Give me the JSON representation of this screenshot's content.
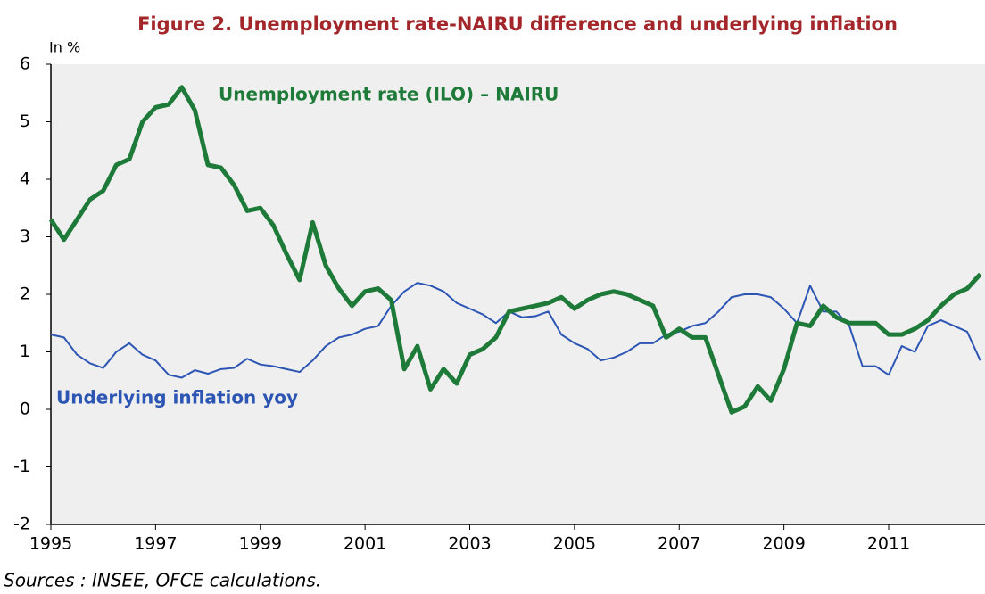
{
  "chart_data": {
    "type": "line",
    "title": "Figure 2. Unemployment rate-NAIRU difference and underlying inflation",
    "y_axis_label": "In %",
    "source": "Sources : INSEE, OFCE calculations.",
    "x": [
      1995,
      1995.25,
      1995.5,
      1995.75,
      1996,
      1996.25,
      1996.5,
      1996.75,
      1997,
      1997.25,
      1997.5,
      1997.75,
      1998,
      1998.25,
      1998.5,
      1998.75,
      1999,
      1999.25,
      1999.5,
      1999.75,
      2000,
      2000.25,
      2000.5,
      2000.75,
      2001,
      2001.25,
      2001.5,
      2001.75,
      2002,
      2002.25,
      2002.5,
      2002.75,
      2003,
      2003.25,
      2003.5,
      2003.75,
      2004,
      2004.25,
      2004.5,
      2004.75,
      2005,
      2005.25,
      2005.5,
      2005.75,
      2006,
      2006.25,
      2006.5,
      2006.75,
      2007,
      2007.25,
      2007.5,
      2007.75,
      2008,
      2008.25,
      2008.5,
      2008.75,
      2009,
      2009.25,
      2009.5,
      2009.75,
      2010,
      2010.25,
      2010.5,
      2010.75,
      2011,
      2011.25,
      2011.5,
      2011.75,
      2012,
      2012.25,
      2012.5,
      2012.75
    ],
    "series": [
      {
        "name": "Unemployment rate (ILO) – NAIRU",
        "color": "#1e7a38",
        "width": 5,
        "values": [
          3.3,
          2.95,
          3.3,
          3.65,
          3.8,
          4.25,
          4.35,
          5.0,
          5.25,
          5.3,
          5.6,
          5.2,
          4.25,
          4.2,
          3.9,
          3.45,
          3.5,
          3.2,
          2.7,
          2.25,
          3.25,
          2.5,
          2.1,
          1.8,
          2.05,
          2.1,
          1.9,
          0.7,
          1.1,
          0.35,
          0.7,
          0.45,
          0.95,
          1.05,
          1.25,
          1.7,
          1.75,
          1.8,
          1.85,
          1.95,
          1.75,
          1.9,
          2.0,
          2.05,
          2.0,
          1.9,
          1.8,
          1.25,
          1.4,
          1.25,
          1.25,
          0.6,
          -0.05,
          0.05,
          0.4,
          0.15,
          0.7,
          1.5,
          1.45,
          1.8,
          1.6,
          1.5,
          1.5,
          1.5,
          1.3,
          1.3,
          1.4,
          1.55,
          1.8,
          2.0,
          2.1,
          2.35
        ]
      },
      {
        "name": "Underlying inflation yoy",
        "color": "#2c55b4",
        "width": 2,
        "values": [
          1.3,
          1.25,
          0.95,
          0.8,
          0.72,
          1.0,
          1.15,
          0.95,
          0.85,
          0.6,
          0.55,
          0.68,
          0.62,
          0.7,
          0.72,
          0.88,
          0.78,
          0.75,
          0.7,
          0.65,
          0.85,
          1.1,
          1.25,
          1.3,
          1.4,
          1.45,
          1.8,
          2.05,
          2.2,
          2.15,
          2.05,
          1.85,
          1.75,
          1.65,
          1.5,
          1.7,
          1.6,
          1.62,
          1.7,
          1.3,
          1.15,
          1.05,
          0.85,
          0.9,
          1.0,
          1.15,
          1.15,
          1.3,
          1.35,
          1.45,
          1.5,
          1.7,
          1.95,
          2.0,
          2.0,
          1.95,
          1.75,
          1.5,
          2.15,
          1.7,
          1.7,
          1.45,
          0.75,
          0.75,
          0.6,
          1.1,
          1.0,
          1.45,
          1.55,
          1.45,
          1.35,
          0.85
        ]
      }
    ],
    "xlim": [
      1995,
      2012.84
    ],
    "xticks": [
      1995,
      1997,
      1999,
      2001,
      2003,
      2005,
      2007,
      2009,
      2011
    ],
    "ylim": [
      -2,
      6
    ],
    "yticks": [
      -2,
      -1,
      0,
      1,
      2,
      3,
      4,
      5,
      6
    ],
    "grid": false
  }
}
